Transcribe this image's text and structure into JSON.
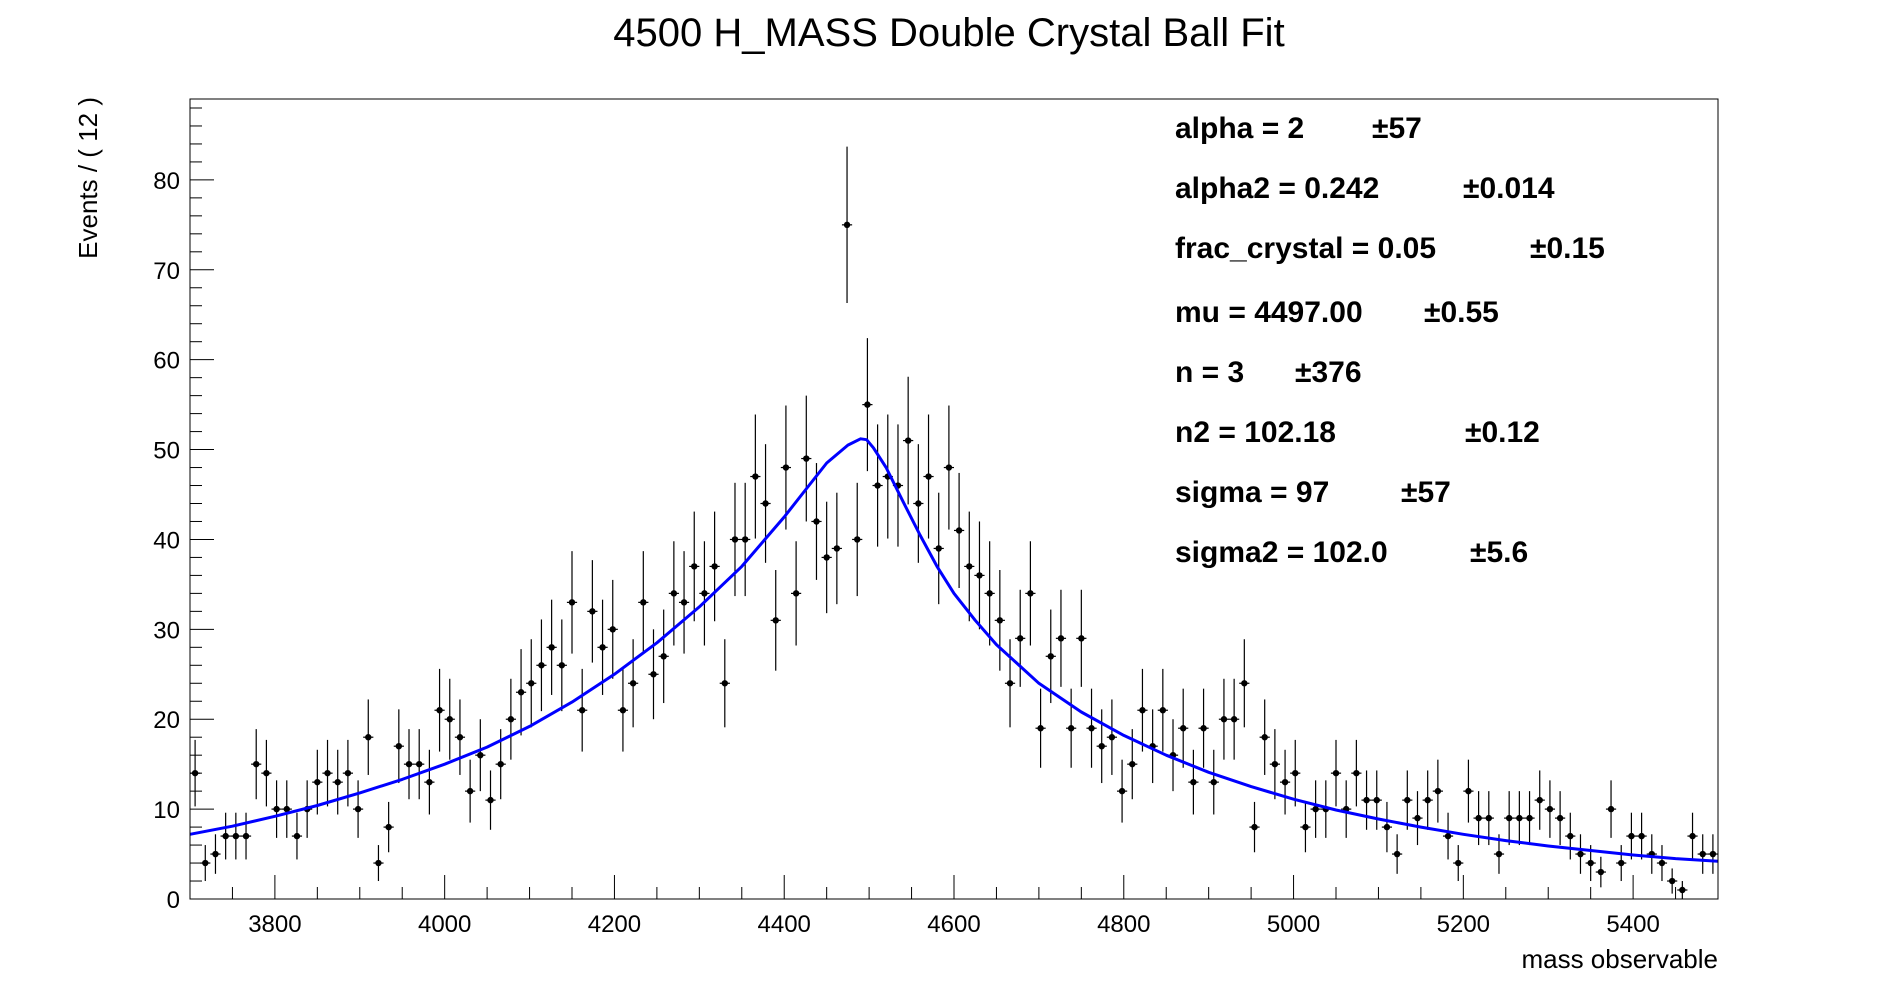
{
  "chart_data": {
    "type": "scatter",
    "title": "4500 H_MASS Double Crystal Ball Fit",
    "xlabel": "mass observable",
    "ylabel": "Events / ( 12 )",
    "xlim": [
      3700,
      5500
    ],
    "ylim": [
      0,
      89
    ],
    "x_ticks": [
      "3800",
      "4000",
      "4200",
      "4400",
      "4600",
      "4800",
      "5000",
      "5200",
      "5400"
    ],
    "y_ticks": [
      "0",
      "10",
      "20",
      "30",
      "40",
      "50",
      "60",
      "70",
      "80"
    ],
    "grid": false,
    "legend": "none",
    "bin_width": 12,
    "colors": {
      "points": "#000000",
      "fit": "#0000ff",
      "frame": "#000000"
    },
    "fit_parameters": [
      {
        "name": "alpha",
        "value": "2",
        "error": "57"
      },
      {
        "name": "alpha2",
        "value": "0.242",
        "error": "0.014"
      },
      {
        "name": "frac_crystal",
        "value": "0.05",
        "error": "0.15"
      },
      {
        "name": "mu",
        "value": "4497.00",
        "error": "0.55"
      },
      {
        "name": "n",
        "value": "3",
        "error": "376"
      },
      {
        "name": "n2",
        "value": "102.18",
        "error": "0.12"
      },
      {
        "name": "sigma",
        "value": "97",
        "error": "57"
      },
      {
        "name": "sigma2",
        "value": "102.0",
        "error": "5.6"
      }
    ],
    "series": [
      {
        "kind": "points-with-errors",
        "x": [
          3706,
          3718,
          3730,
          3742,
          3754,
          3766,
          3778,
          3790,
          3802,
          3814,
          3826,
          3838,
          3850,
          3862,
          3874,
          3886,
          3898,
          3910,
          3922,
          3934,
          3946,
          3958,
          3970,
          3982,
          3994,
          4006,
          4018,
          4030,
          4042,
          4054,
          4066,
          4078,
          4090,
          4102,
          4114,
          4126,
          4138,
          4150,
          4162,
          4174,
          4186,
          4198,
          4210,
          4222,
          4234,
          4246,
          4258,
          4270,
          4282,
          4294,
          4306,
          4318,
          4330,
          4342,
          4354,
          4366,
          4378,
          4390,
          4402,
          4414,
          4426,
          4438,
          4450,
          4462,
          4474,
          4486,
          4498,
          4510,
          4522,
          4534,
          4546,
          4558,
          4570,
          4582,
          4594,
          4606,
          4618,
          4630,
          4642,
          4654,
          4666,
          4678,
          4690,
          4702,
          4714,
          4726,
          4738,
          4750,
          4762,
          4774,
          4786,
          4798,
          4810,
          4822,
          4834,
          4846,
          4858,
          4870,
          4882,
          4894,
          4906,
          4918,
          4930,
          4942,
          4954,
          4966,
          4978,
          4990,
          5002,
          5014,
          5026,
          5038,
          5050,
          5062,
          5074,
          5086,
          5098,
          5110,
          5122,
          5134,
          5146,
          5158,
          5170,
          5182,
          5194,
          5206,
          5218,
          5230,
          5242,
          5254,
          5266,
          5278,
          5290,
          5302,
          5314,
          5326,
          5338,
          5350,
          5362,
          5374,
          5386,
          5398,
          5410,
          5422,
          5434,
          5446,
          5458,
          5470,
          5482,
          5494
        ],
        "y": [
          14,
          4,
          5,
          7,
          7,
          7,
          15,
          14,
          10,
          10,
          7,
          10,
          13,
          14,
          13,
          14,
          10,
          18,
          4,
          8,
          17,
          15,
          15,
          13,
          21,
          20,
          18,
          12,
          16,
          11,
          15,
          20,
          23,
          24,
          26,
          28,
          26,
          33,
          21,
          32,
          28,
          30,
          21,
          24,
          33,
          25,
          27,
          34,
          33,
          37,
          34,
          37,
          24,
          40,
          40,
          47,
          44,
          31,
          48,
          34,
          49,
          42,
          38,
          39,
          75,
          40,
          55,
          46,
          47,
          46,
          51,
          44,
          47,
          39,
          48,
          41,
          37,
          36,
          34,
          31,
          24,
          29,
          34,
          19,
          27,
          29,
          19,
          29,
          19,
          17,
          18,
          12,
          15,
          21,
          17,
          21,
          16,
          19,
          13,
          19,
          13,
          20,
          20,
          24,
          8,
          18,
          15,
          13,
          14,
          8,
          10,
          10,
          14,
          10,
          14,
          11,
          11,
          8,
          5,
          11,
          9,
          11,
          12,
          7,
          4,
          12,
          9,
          9,
          5,
          9,
          9,
          9,
          11,
          10,
          9,
          7,
          5,
          4,
          3,
          10,
          4,
          7,
          7,
          5,
          4,
          2,
          1,
          7,
          5,
          5
        ],
        "yerr": [
          3.7,
          2.0,
          2.2,
          2.6,
          2.6,
          2.6,
          3.9,
          3.7,
          3.2,
          3.2,
          2.6,
          3.2,
          3.6,
          3.7,
          3.6,
          3.7,
          3.2,
          4.2,
          2.0,
          2.8,
          4.1,
          3.9,
          3.9,
          3.6,
          4.6,
          4.5,
          4.2,
          3.5,
          4.0,
          3.3,
          3.9,
          4.5,
          4.8,
          4.9,
          5.1,
          5.3,
          5.1,
          5.7,
          4.6,
          5.7,
          5.3,
          5.5,
          4.6,
          4.9,
          5.7,
          5.0,
          5.2,
          5.8,
          5.7,
          6.1,
          5.8,
          6.1,
          4.9,
          6.3,
          6.3,
          6.9,
          6.6,
          5.6,
          6.9,
          5.8,
          7.0,
          6.5,
          6.2,
          6.2,
          8.7,
          6.3,
          7.4,
          6.8,
          6.9,
          6.8,
          7.1,
          6.6,
          6.9,
          6.2,
          6.9,
          6.4,
          6.1,
          6.0,
          5.8,
          5.6,
          4.9,
          5.4,
          5.8,
          4.4,
          5.2,
          5.4,
          4.4,
          5.4,
          4.4,
          4.1,
          4.2,
          3.5,
          3.9,
          4.6,
          4.1,
          4.6,
          4.0,
          4.4,
          3.6,
          4.4,
          3.6,
          4.5,
          4.5,
          4.9,
          2.8,
          4.2,
          3.9,
          3.6,
          3.7,
          2.8,
          3.2,
          3.2,
          3.7,
          3.2,
          3.7,
          3.3,
          3.3,
          2.8,
          2.2,
          3.3,
          3.0,
          3.3,
          3.5,
          2.6,
          2.0,
          3.5,
          3.0,
          3.0,
          2.2,
          3.0,
          3.0,
          3.0,
          3.3,
          3.2,
          3.0,
          2.6,
          2.2,
          2.0,
          1.7,
          3.2,
          2.0,
          2.6,
          2.6,
          2.2,
          2.0,
          1.4,
          1.0,
          2.6,
          2.2,
          2.2
        ]
      },
      {
        "kind": "fit-curve",
        "x": [
          3700,
          3750,
          3800,
          3850,
          3900,
          3950,
          4000,
          4050,
          4100,
          4150,
          4200,
          4250,
          4300,
          4350,
          4400,
          4425,
          4450,
          4475,
          4490,
          4497,
          4505,
          4520,
          4540,
          4560,
          4580,
          4600,
          4625,
          4650,
          4700,
          4750,
          4800,
          4850,
          4900,
          4950,
          5000,
          5050,
          5100,
          5150,
          5200,
          5250,
          5300,
          5350,
          5400,
          5450,
          5500
        ],
        "y": [
          7.2,
          8.1,
          9.2,
          10.4,
          11.8,
          13.3,
          15.0,
          16.9,
          19.2,
          21.9,
          25.0,
          28.5,
          32.5,
          37.0,
          42.5,
          45.5,
          48.5,
          50.5,
          51.2,
          51.1,
          50.2,
          48.0,
          44.2,
          40.5,
          37.0,
          34.0,
          31.0,
          28.3,
          24.0,
          20.8,
          18.2,
          16.0,
          14.1,
          12.5,
          11.1,
          9.9,
          8.9,
          8.0,
          7.2,
          6.5,
          5.9,
          5.4,
          4.9,
          4.5,
          4.2
        ]
      }
    ]
  }
}
